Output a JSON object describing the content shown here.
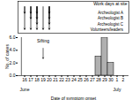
{
  "chart_data": {
    "type": "bar",
    "title": "Work days at site",
    "x_label": "Date of symptom onset",
    "y_label": "No. of cases",
    "categories": [
      "16",
      "17",
      "18",
      "19",
      "20",
      "21",
      "22",
      "23",
      "24",
      "25",
      "26",
      "27",
      "28",
      "29",
      "30",
      "1",
      "2"
    ],
    "months": [
      {
        "label": "June",
        "x": "16"
      },
      {
        "label": "July",
        "x": "1"
      }
    ],
    "values": [
      0,
      0,
      0,
      0,
      0,
      0,
      0,
      0,
      0,
      0,
      0,
      0,
      3,
      6,
      2,
      0,
      0
    ],
    "color": "#b0b0b0",
    "ylim": [
      0,
      6
    ],
    "yticks": [
      0,
      2,
      4,
      6
    ],
    "annotations": [
      {
        "text": "Sifting",
        "x": "19"
      }
    ],
    "work_days": [
      {
        "name": "Archeologist A",
        "days": [
          "16",
          "17",
          "18",
          "20"
        ]
      },
      {
        "name": "Archeologist B",
        "days": [
          "17",
          "18",
          "20"
        ]
      },
      {
        "name": "Archeologist C",
        "days": [
          "18",
          "20"
        ]
      },
      {
        "name": "Volunteers/leaders",
        "days": [
          "16",
          "17",
          "18",
          "19",
          "20"
        ]
      }
    ]
  }
}
